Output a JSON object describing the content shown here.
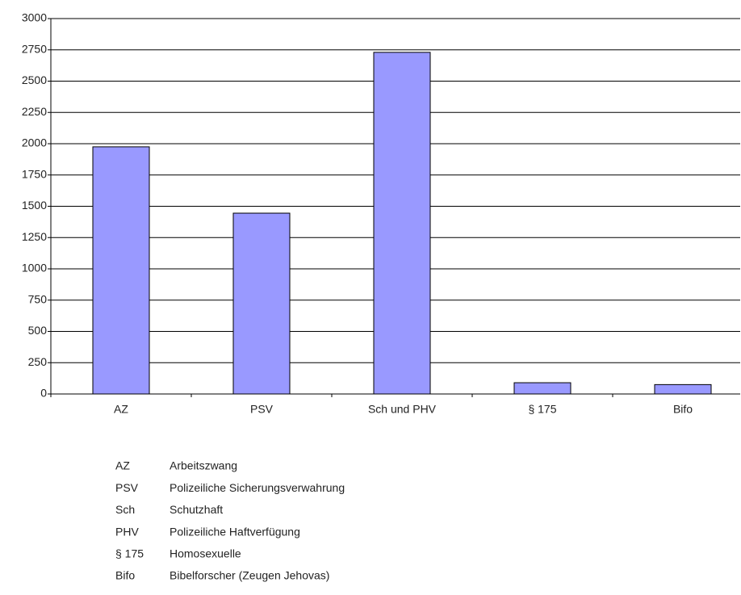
{
  "chart_data": {
    "type": "bar",
    "categories": [
      "AZ",
      "PSV",
      "Sch und PHV",
      "§ 175",
      "Bifo"
    ],
    "values": [
      1975,
      1445,
      2730,
      90,
      75
    ],
    "color": "#9999ff",
    "ylim": [
      0,
      3000
    ],
    "yticks": [
      0,
      250,
      500,
      750,
      1000,
      1250,
      1500,
      1750,
      2000,
      2250,
      2500,
      2750,
      3000
    ],
    "grid": true
  },
  "abbreviations": [
    {
      "abbr": "AZ",
      "text": "Arbeitszwang"
    },
    {
      "abbr": "PSV",
      "text": "Polizeiliche Sicherungsverwahrung"
    },
    {
      "abbr": "Sch",
      "text": "Schutzhaft"
    },
    {
      "abbr": "PHV",
      "text": "Polizeiliche Haftverfügung"
    },
    {
      "abbr": "§ 175",
      "text": "Homosexuelle"
    },
    {
      "abbr": "Bifo",
      "text": "Bibelforscher (Zeugen Jehovas)"
    }
  ]
}
